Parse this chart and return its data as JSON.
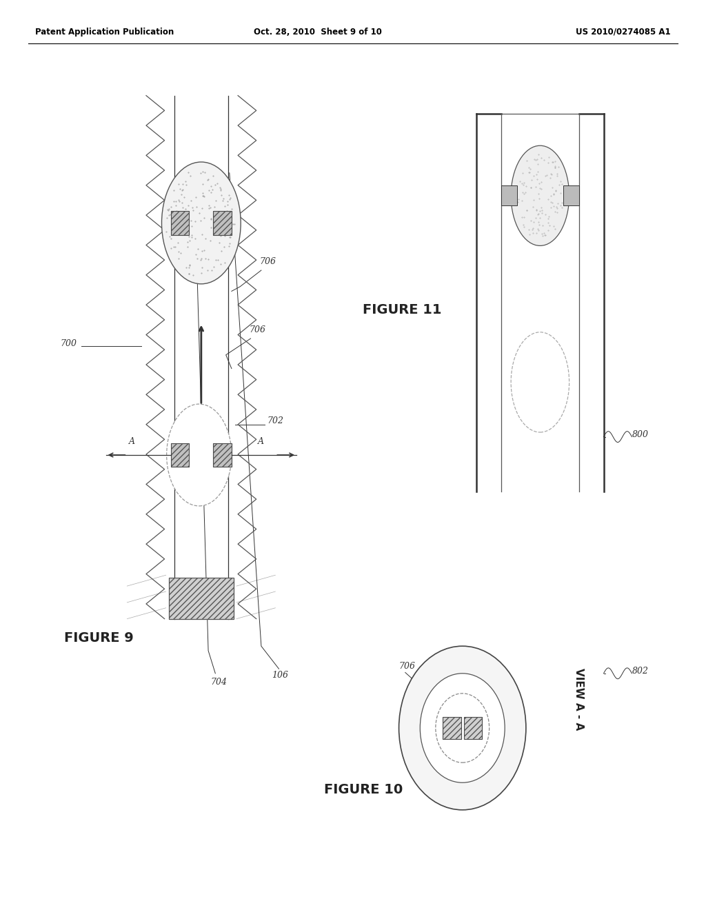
{
  "bg_color": "#ffffff",
  "header_left": "Patent Application Publication",
  "header_center": "Oct. 28, 2010  Sheet 9 of 10",
  "header_right": "US 2010/0274085 A1",
  "fig9_label": "FIGURE 9",
  "fig10_label": "FIGURE 10",
  "fig11_label": "FIGURE 11",
  "view_label": "VIEW A - A",
  "line_color": "#333333",
  "light_gray": "#cccccc",
  "medium_gray": "#888888"
}
